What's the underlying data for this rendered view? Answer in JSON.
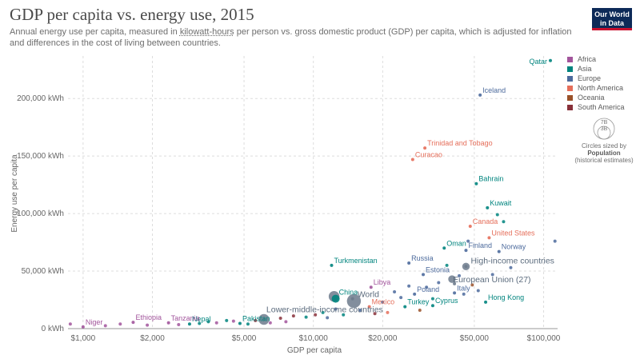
{
  "header": {
    "title": "GDP per capita vs. energy use, 2015",
    "subtitle_pre": "Annual energy use per capita, measured in ",
    "subtitle_link": "kilowatt-hours",
    "subtitle_post": " per person vs. gross domestic product (GDP) per capita, which is adjusted for inflation and differences in the cost of living between countries."
  },
  "logo": {
    "line1": "Our World",
    "line2": "in Data"
  },
  "legend": [
    {
      "label": "Africa",
      "color": "#a2559c"
    },
    {
      "label": "Asia",
      "color": "#00847e"
    },
    {
      "label": "Europe",
      "color": "#4c6a9c"
    },
    {
      "label": "North America",
      "color": "#e56e5a"
    },
    {
      "label": "Oceania",
      "color": "#9a5129"
    },
    {
      "label": "South America",
      "color": "#883039"
    }
  ],
  "size_key": {
    "big_label": "7B",
    "small_label": "3B",
    "caption1": "Circles sized by",
    "caption2": "Population",
    "caption3": "(historical estimates)"
  },
  "chart_data": {
    "type": "scatter",
    "title": "GDP per capita vs. energy use, 2015",
    "xlabel": "GDP per capita",
    "ylabel": "Energy use per capita",
    "xscale": "log",
    "xlim": [
      860,
      115000
    ],
    "ylim": [
      0,
      237000
    ],
    "xticks": [
      {
        "value": 1000,
        "label": "$1,000"
      },
      {
        "value": 2000,
        "label": "$2,000"
      },
      {
        "value": 5000,
        "label": "$5,000"
      },
      {
        "value": 10000,
        "label": "$10,000"
      },
      {
        "value": 20000,
        "label": "$20,000"
      },
      {
        "value": 50000,
        "label": "$50,000"
      },
      {
        "value": 100000,
        "label": "$100,000"
      }
    ],
    "yticks": [
      {
        "value": 0,
        "label": "0 kWh"
      },
      {
        "value": 50000,
        "label": "50,000 kWh"
      },
      {
        "value": 100000,
        "label": "100,000 kWh"
      },
      {
        "value": 150000,
        "label": "150,000 kWh"
      },
      {
        "value": 200000,
        "label": "200,000 kWh"
      }
    ],
    "grid": true,
    "legend_position": "right",
    "labeled_points": [
      {
        "label": "Qatar",
        "x": 107000,
        "y": 233000,
        "region": "Asia"
      },
      {
        "label": "Iceland",
        "x": 53000,
        "y": 203000,
        "region": "Europe"
      },
      {
        "label": "Trinidad and Tobago",
        "x": 30500,
        "y": 157000,
        "region": "North America"
      },
      {
        "label": "Curacao",
        "x": 27000,
        "y": 147000,
        "region": "North America"
      },
      {
        "label": "Bahrain",
        "x": 51000,
        "y": 126000,
        "region": "Asia"
      },
      {
        "label": "Kuwait",
        "x": 57000,
        "y": 105000,
        "region": "Asia"
      },
      {
        "label": "Canada",
        "x": 48000,
        "y": 89000,
        "region": "North America"
      },
      {
        "label": "United States",
        "x": 58000,
        "y": 79000,
        "region": "North America"
      },
      {
        "label": "Oman",
        "x": 37000,
        "y": 70000,
        "region": "Asia"
      },
      {
        "label": "Finland",
        "x": 46000,
        "y": 68000,
        "region": "Europe"
      },
      {
        "label": "Norway",
        "x": 64000,
        "y": 67000,
        "region": "Europe"
      },
      {
        "label": "Russia",
        "x": 26000,
        "y": 57000,
        "region": "Europe"
      },
      {
        "label": "Turkmenistan",
        "x": 12000,
        "y": 55000,
        "region": "Asia"
      },
      {
        "label": "High-income countries",
        "x": 46000,
        "y": 54000,
        "region": "Aggregate"
      },
      {
        "label": "Estonia",
        "x": 30000,
        "y": 47000,
        "region": "Europe"
      },
      {
        "label": "European Union (27)",
        "x": 41000,
        "y": 39000,
        "region": "Aggregate"
      },
      {
        "label": "Libya",
        "x": 17800,
        "y": 36000,
        "region": "Africa"
      },
      {
        "label": "World",
        "x": 14800,
        "y": 26000,
        "region": "Aggregate"
      },
      {
        "label": "China",
        "x": 12500,
        "y": 26000,
        "region": "Asia"
      },
      {
        "label": "Poland",
        "x": 27500,
        "y": 30000,
        "region": "Europe"
      },
      {
        "label": "Italy",
        "x": 41000,
        "y": 31000,
        "region": "Europe"
      },
      {
        "label": "Hong Kong",
        "x": 56000,
        "y": 23000,
        "region": "Asia"
      },
      {
        "label": "Mexico",
        "x": 17500,
        "y": 19000,
        "region": "North America"
      },
      {
        "label": "Turkey",
        "x": 25000,
        "y": 19000,
        "region": "Asia"
      },
      {
        "label": "Cyprus",
        "x": 33000,
        "y": 20000,
        "region": "Asia"
      },
      {
        "label": "Lower-middle-income countries",
        "x": 6100,
        "y": 8000,
        "region": "Aggregate"
      },
      {
        "label": "Pakistan",
        "x": 4800,
        "y": 4500,
        "region": "Asia"
      },
      {
        "label": "Nepal",
        "x": 2900,
        "y": 4000,
        "region": "Asia"
      },
      {
        "label": "Tanzania",
        "x": 2350,
        "y": 5000,
        "region": "Africa"
      },
      {
        "label": "Ethiopia",
        "x": 1650,
        "y": 5500,
        "region": "Africa"
      },
      {
        "label": "Niger",
        "x": 1000,
        "y": 1500,
        "region": "Africa"
      }
    ],
    "unlabeled_points": [
      {
        "x": 880,
        "y": 4000,
        "region": "Africa"
      },
      {
        "x": 1250,
        "y": 2500,
        "region": "Africa"
      },
      {
        "x": 1450,
        "y": 4000,
        "region": "Africa"
      },
      {
        "x": 1900,
        "y": 3000,
        "region": "Africa"
      },
      {
        "x": 2600,
        "y": 3500,
        "region": "Africa"
      },
      {
        "x": 3200,
        "y": 4500,
        "region": "Asia"
      },
      {
        "x": 3500,
        "y": 6000,
        "region": "Asia"
      },
      {
        "x": 3800,
        "y": 5000,
        "region": "Africa"
      },
      {
        "x": 4200,
        "y": 7000,
        "region": "Asia"
      },
      {
        "x": 4500,
        "y": 6500,
        "region": "Africa"
      },
      {
        "x": 5200,
        "y": 4000,
        "region": "Asia"
      },
      {
        "x": 5600,
        "y": 7000,
        "region": "South America"
      },
      {
        "x": 6500,
        "y": 5000,
        "region": "Africa"
      },
      {
        "x": 7200,
        "y": 9000,
        "region": "South America"
      },
      {
        "x": 7600,
        "y": 6000,
        "region": "Africa"
      },
      {
        "x": 8200,
        "y": 11000,
        "region": "South America"
      },
      {
        "x": 9300,
        "y": 10000,
        "region": "Asia"
      },
      {
        "x": 10200,
        "y": 12000,
        "region": "South America"
      },
      {
        "x": 11000,
        "y": 14000,
        "region": "Asia"
      },
      {
        "x": 11500,
        "y": 9500,
        "region": "Europe"
      },
      {
        "x": 12500,
        "y": 17000,
        "region": "Europe"
      },
      {
        "x": 13500,
        "y": 12000,
        "region": "Asia"
      },
      {
        "x": 16000,
        "y": 16000,
        "region": "Europe"
      },
      {
        "x": 18500,
        "y": 13000,
        "region": "South America"
      },
      {
        "x": 20000,
        "y": 23000,
        "region": "Europe"
      },
      {
        "x": 21000,
        "y": 14000,
        "region": "North America"
      },
      {
        "x": 22500,
        "y": 32000,
        "region": "Europe"
      },
      {
        "x": 24000,
        "y": 27000,
        "region": "Europe"
      },
      {
        "x": 26000,
        "y": 37000,
        "region": "Europe"
      },
      {
        "x": 29000,
        "y": 16000,
        "region": "Oceania"
      },
      {
        "x": 31000,
        "y": 36000,
        "region": "Europe"
      },
      {
        "x": 33000,
        "y": 26000,
        "region": "Asia"
      },
      {
        "x": 35000,
        "y": 40000,
        "region": "Europe"
      },
      {
        "x": 38000,
        "y": 55000,
        "region": "Asia"
      },
      {
        "x": 43000,
        "y": 46000,
        "region": "Europe"
      },
      {
        "x": 45000,
        "y": 30000,
        "region": "Europe"
      },
      {
        "x": 47000,
        "y": 76000,
        "region": "Europe"
      },
      {
        "x": 49000,
        "y": 38000,
        "region": "Oceania"
      },
      {
        "x": 52000,
        "y": 33000,
        "region": "Europe"
      },
      {
        "x": 60000,
        "y": 47000,
        "region": "Europe"
      },
      {
        "x": 63000,
        "y": 99000,
        "region": "Asia"
      },
      {
        "x": 67000,
        "y": 93000,
        "region": "Asia"
      },
      {
        "x": 72000,
        "y": 53000,
        "region": "Europe"
      },
      {
        "x": 112000,
        "y": 76000,
        "region": "Europe"
      }
    ],
    "aggregate_circles": [
      {
        "x": 15000,
        "y": 24000,
        "size": "large"
      },
      {
        "x": 12300,
        "y": 28000,
        "size": "medium"
      },
      {
        "x": 6100,
        "y": 8000,
        "size": "medium"
      },
      {
        "x": 40000,
        "y": 43000,
        "size": "small"
      },
      {
        "x": 46000,
        "y": 54000,
        "size": "small"
      }
    ]
  },
  "region_colors": {
    "Africa": "#a2559c",
    "Asia": "#00847e",
    "Europe": "#4c6a9c",
    "North America": "#e56e5a",
    "Oceania": "#9a5129",
    "South America": "#883039",
    "Aggregate": "#6d7b8d"
  }
}
